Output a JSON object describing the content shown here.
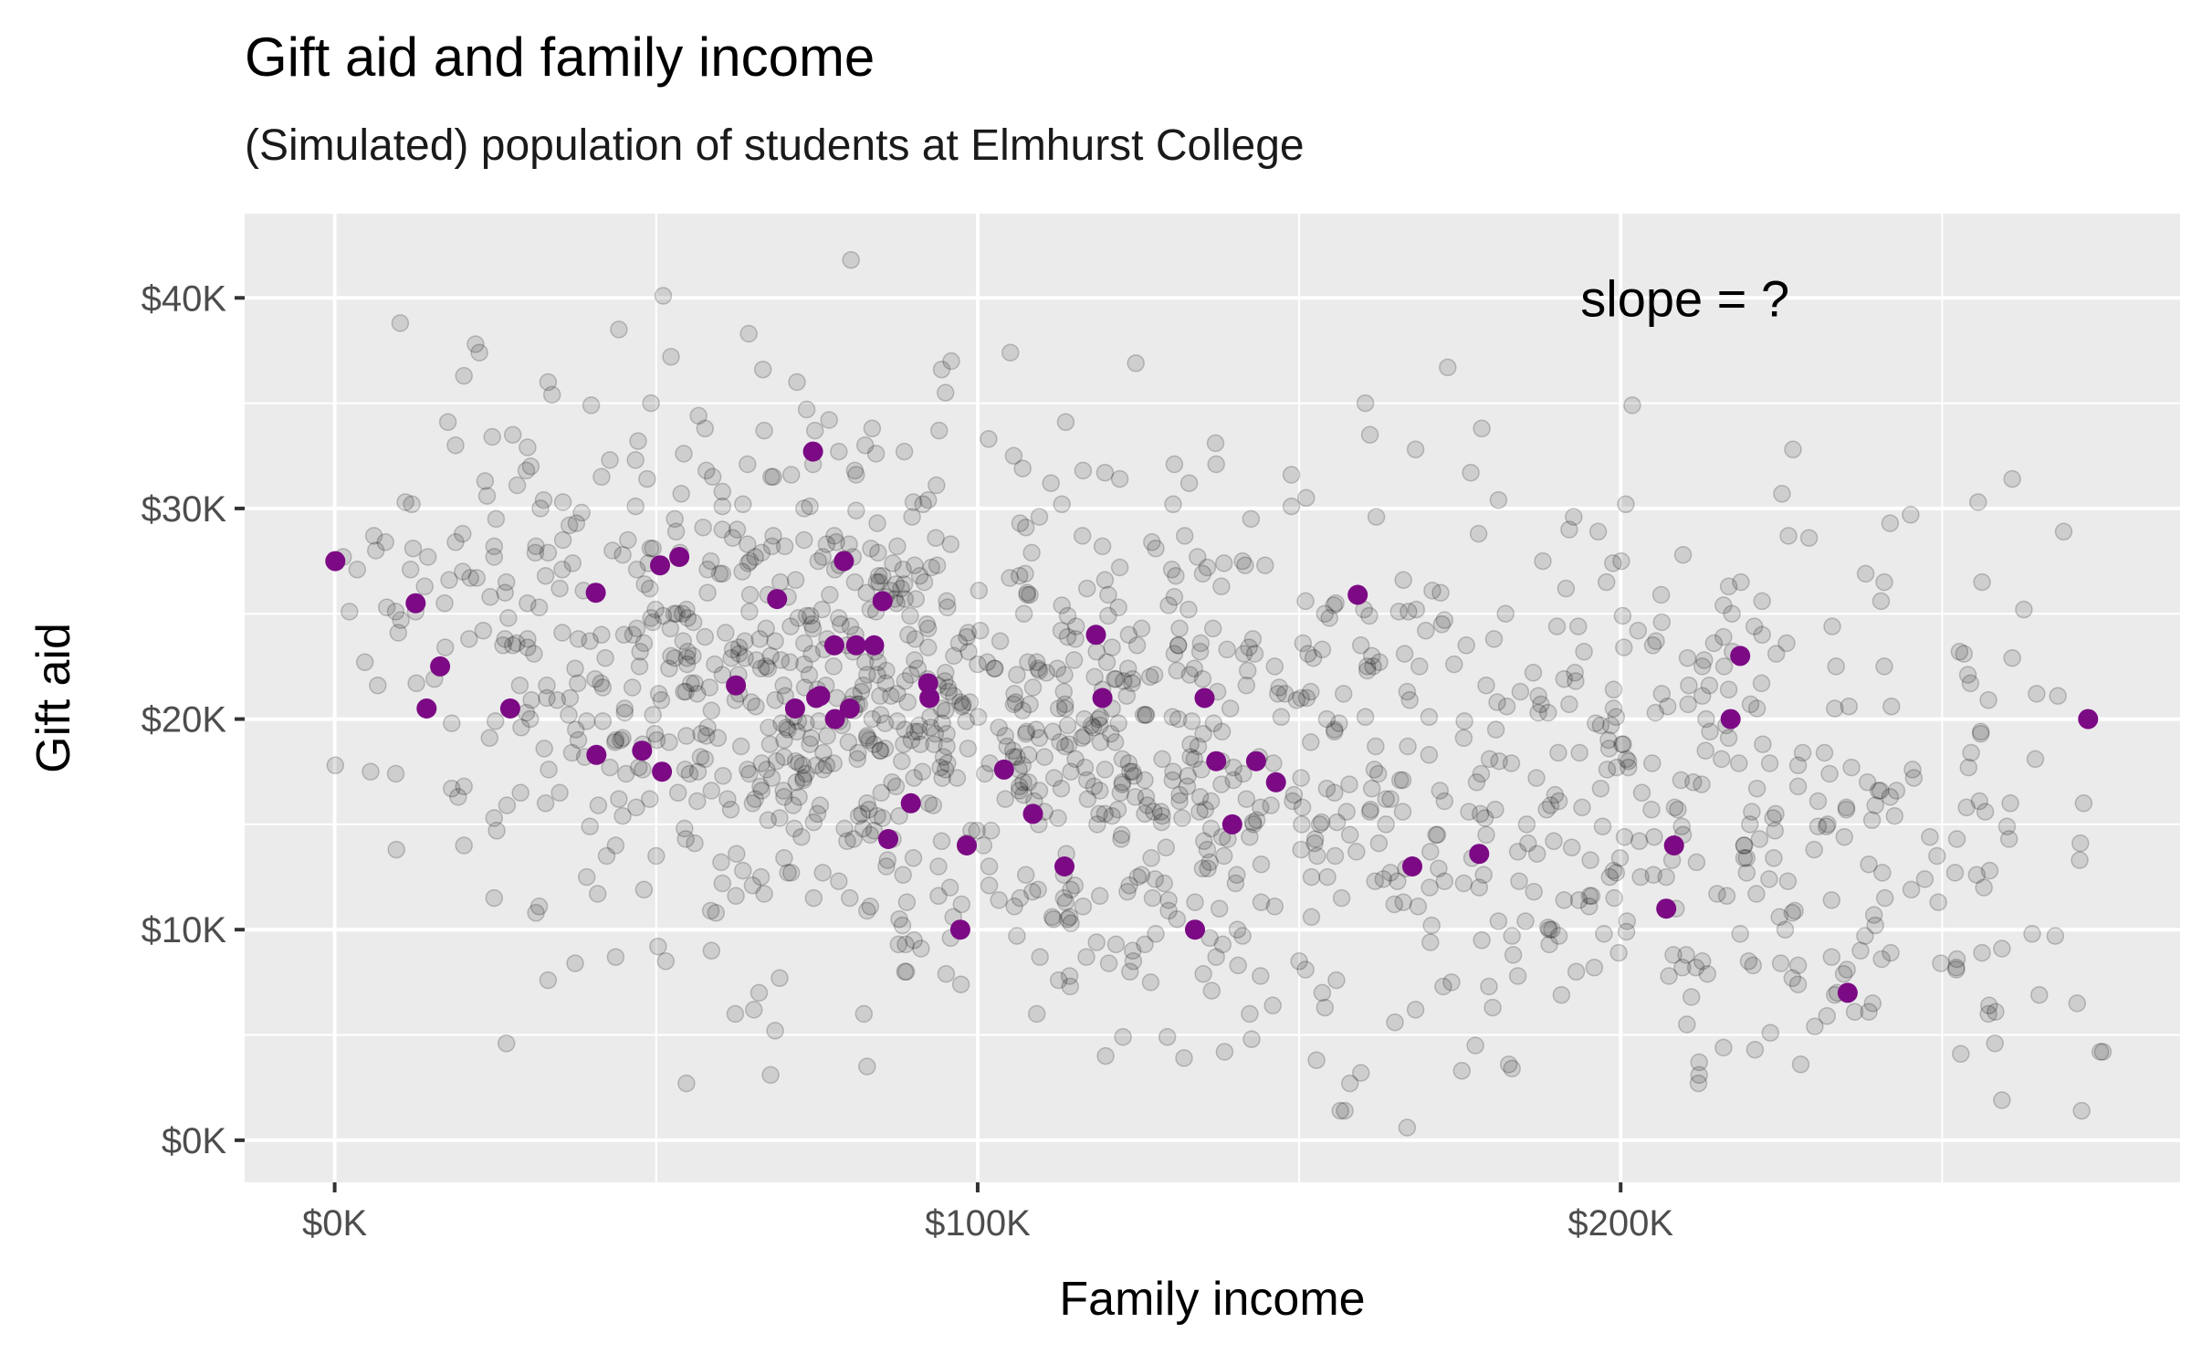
{
  "chart_data": {
    "type": "scatter",
    "title": "Gift aid and family income",
    "subtitle": "(Simulated) population of students at Elmhurst College",
    "xlabel": "Family income",
    "ylabel": "Gift aid",
    "xlim": [
      -14,
      287
    ],
    "ylim": [
      -2,
      44
    ],
    "x_ticks": [
      0,
      100,
      200
    ],
    "x_tick_labels": [
      "$0K",
      "$100K",
      "$200K"
    ],
    "y_ticks": [
      0,
      10,
      20,
      30,
      40
    ],
    "y_tick_labels": [
      "$0K",
      "$10K",
      "$20K",
      "$30K",
      "$40K"
    ],
    "annotation": {
      "text": "slope = ?",
      "x": 210,
      "y": 40
    },
    "colors": {
      "panel": "#ebebeb",
      "grid": "#ffffff",
      "population": "#000000",
      "sample": "#7b0a84"
    },
    "series": [
      {
        "name": "sample",
        "x": [
          0.1,
          12.6,
          14.3,
          16.4,
          27.3,
          40.6,
          40.7,
          47.8,
          50.6,
          50.9,
          53.6,
          62.4,
          68.8,
          71.6,
          74.4,
          74.9,
          75.5,
          77.7,
          77.8,
          79.2,
          80.1,
          81.1,
          83.9,
          85.2,
          86.1,
          89.6,
          92.3,
          92.5,
          98.3,
          97.3,
          104.1,
          108.6,
          113.5,
          118.4,
          119.4,
          133.8,
          135.3,
          137.1,
          139.6,
          143.3,
          146.4,
          159.1,
          167.6,
          178.0,
          207.1,
          208.3,
          217.1,
          218.6,
          235.3,
          272.7
        ],
        "y": [
          27.5,
          25.5,
          20.5,
          22.5,
          20.5,
          26.0,
          18.3,
          18.5,
          27.3,
          17.5,
          27.7,
          21.6,
          25.7,
          20.5,
          32.7,
          21.0,
          21.1,
          23.5,
          20.0,
          27.5,
          20.5,
          23.5,
          23.5,
          25.6,
          14.3,
          16.0,
          21.7,
          21.0,
          14.0,
          10.0,
          17.6,
          15.5,
          13.0,
          24.0,
          21.0,
          10.0,
          21.0,
          18.0,
          15.0,
          18.0,
          17.0,
          25.9,
          13.0,
          13.6,
          11.0,
          14.0,
          20.0,
          23.0,
          7.0,
          20.0
        ]
      }
    ],
    "population": {
      "name": "population",
      "n": 1400,
      "x": [
        33.2,
        51.1,
        64.4,
        80.3,
        94.4,
        95.9,
        113.7,
        119.8,
        127.7,
        130.6,
        142.5,
        154.0,
        160.3,
        166.8,
        178.4,
        190.1,
        196.5,
        207.3,
        214.5,
        226.8,
        238.1,
        245.1,
        253.4,
        268.9,
        12.0,
        24.5,
        45.6,
        58.8,
        73.4,
        87.3,
        101.5,
        105.9,
        121.4,
        136.7,
        149.0,
        171.5,
        184.2,
        201.0,
        218.6,
        232.8,
        258.3,
        275.0
      ],
      "y": [
        36.0,
        40.1,
        38.3,
        41.8,
        36.6,
        37.0,
        34.1,
        31.7,
        28.1,
        32.1,
        29.5,
        25.0,
        35.0,
        21.3,
        33.8,
        24.4,
        28.9,
        20.6,
        23.6,
        32.8,
        26.9,
        29.7,
        23.1,
        28.9,
        30.2,
        33.4,
        28.5,
        31.5,
        24.9,
        26.4,
        22.7,
        20.8,
        18.9,
        19.8,
        16.1,
        14.5,
        12.3,
        10.4,
        9.8,
        8.7,
        6.1,
        4.2
      ]
    }
  }
}
